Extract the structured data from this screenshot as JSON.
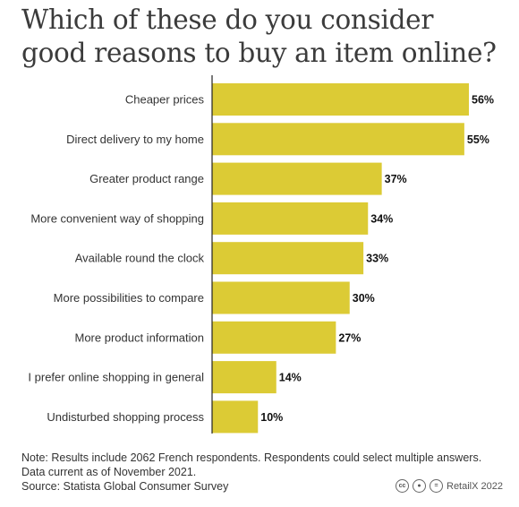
{
  "title": "Which of these do you consider good reasons to buy an item online?",
  "chart_data": {
    "type": "bar",
    "orientation": "horizontal",
    "categories": [
      "Cheaper prices",
      "Direct delivery to my home",
      "Greater product range",
      "More convenient way of shopping",
      "Available round the clock",
      "More possibilities to compare",
      "More product information",
      "I prefer online shopping in general",
      "Undisturbed shopping process"
    ],
    "values": [
      56,
      55,
      37,
      34,
      33,
      30,
      27,
      14,
      10
    ],
    "value_labels": [
      "56%",
      "55%",
      "37%",
      "34%",
      "33%",
      "30%",
      "27%",
      "14%",
      "10%"
    ],
    "bar_color": "#dccb35",
    "axis_line_color": "#222222",
    "xlim": [
      0,
      56
    ],
    "grid": false,
    "xlabel": "",
    "ylabel": ""
  },
  "footer": {
    "note": "Note: Results include 2062 French respondents. Respondents could select multiple answers.",
    "data_current": "Data current as of November 2021.",
    "source": "Source: Statista Global Consumer Survey"
  },
  "brand": {
    "license_icons": [
      "cc-icon",
      "by-icon",
      "nd-icon"
    ],
    "text": "RetailX 2022"
  }
}
